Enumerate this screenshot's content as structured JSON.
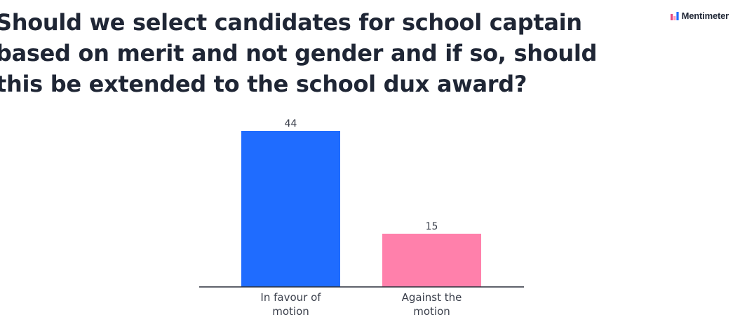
{
  "question": "Should we select candidates for school captain based on merit and not gender and if so, should this be extended to the school dux award?",
  "brand": {
    "name": "Mentimeter",
    "icon": "mentimeter-logo-icon"
  },
  "chart_data": {
    "type": "bar",
    "categories": [
      [
        "In favour of",
        "motion"
      ],
      [
        "Against the",
        "motion"
      ]
    ],
    "values": [
      44,
      15
    ],
    "colors": [
      "#1f6cff",
      "#ff80ab"
    ],
    "axis_color": "#2a2f3a"
  }
}
